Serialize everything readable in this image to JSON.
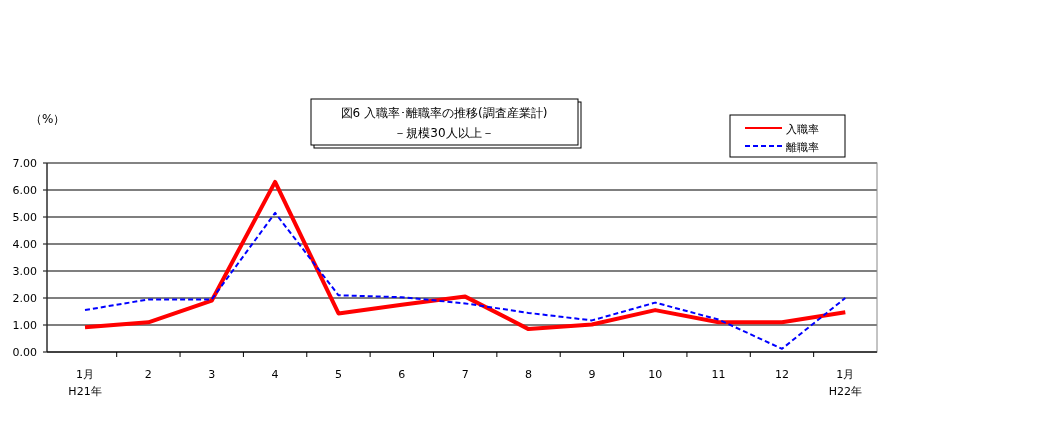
{
  "chart_data": {
    "type": "line",
    "title": "図6 入職率･離職率の推移(調査産業計)",
    "subtitle": "－規模30人以上－",
    "ylabel": "（%）",
    "categories": [
      "1月\nH21年",
      "2",
      "3",
      "4",
      "5",
      "6",
      "7",
      "8",
      "9",
      "10",
      "11",
      "12",
      "1月\nH22年"
    ],
    "series": [
      {
        "name": "入職率",
        "color": "#ff0000",
        "line_style": "solid",
        "values": [
          0.92,
          1.1,
          1.9,
          6.3,
          1.43,
          1.75,
          2.05,
          0.85,
          1.02,
          1.55,
          1.1,
          1.1,
          1.47
        ]
      },
      {
        "name": "離職率",
        "color": "#0000ff",
        "line_style": "dashed",
        "values": [
          1.55,
          1.95,
          1.95,
          5.15,
          2.1,
          2.03,
          1.8,
          1.45,
          1.17,
          1.83,
          1.2,
          0.12,
          2.0
        ]
      }
    ],
    "ylim": [
      0,
      7
    ],
    "yticks": [
      {
        "value": 0,
        "label": "0.00"
      },
      {
        "value": 1,
        "label": "1.00"
      },
      {
        "value": 2,
        "label": "2.00"
      },
      {
        "value": 3,
        "label": "3.00"
      },
      {
        "value": 4,
        "label": "4.00"
      },
      {
        "value": 5,
        "label": "5.00"
      },
      {
        "value": 6,
        "label": "6.00"
      },
      {
        "value": 7,
        "label": "7.00"
      }
    ],
    "grid": "y",
    "legend": "top right",
    "marker": "none"
  }
}
